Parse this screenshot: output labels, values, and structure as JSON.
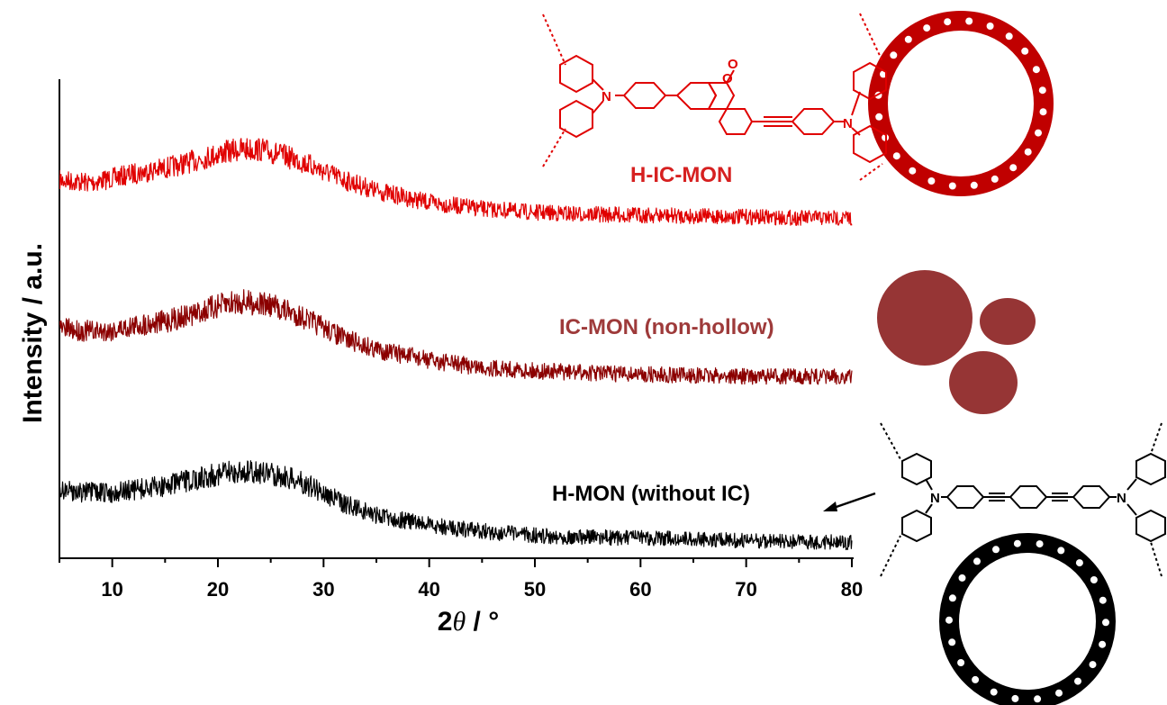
{
  "chart_data": {
    "type": "line",
    "xlabel": "2θ / °",
    "xlabel_parts": {
      "two": "2",
      "theta": "θ",
      "rest": " / °"
    },
    "ylabel": "Intensity / a.u.",
    "xlim": [
      5,
      80
    ],
    "xticks": [
      10,
      20,
      30,
      40,
      50,
      60,
      70,
      80
    ],
    "grid": false,
    "legend": "none",
    "series": [
      {
        "name": "H-IC-MON",
        "color": "#e00000",
        "x": [
          5,
          8,
          10,
          12,
          15,
          18,
          20,
          22,
          24,
          26,
          28,
          30,
          32,
          35,
          40,
          45,
          50,
          55,
          60,
          65,
          70,
          75,
          80
        ],
        "values": [
          0.5,
          0.47,
          0.52,
          0.57,
          0.63,
          0.72,
          0.79,
          0.84,
          0.84,
          0.78,
          0.7,
          0.6,
          0.5,
          0.38,
          0.25,
          0.18,
          0.14,
          0.12,
          0.11,
          0.1,
          0.09,
          0.08,
          0.08
        ]
      },
      {
        "name": "IC-MON (non-hollow)",
        "color": "#8b0000",
        "x": [
          5,
          8,
          10,
          12,
          15,
          18,
          20,
          22,
          24,
          26,
          28,
          30,
          32,
          35,
          40,
          45,
          50,
          55,
          60,
          65,
          70,
          75,
          80
        ],
        "values": [
          0.65,
          0.62,
          0.63,
          0.68,
          0.73,
          0.82,
          0.9,
          0.95,
          0.93,
          0.87,
          0.78,
          0.66,
          0.54,
          0.42,
          0.3,
          0.22,
          0.18,
          0.16,
          0.14,
          0.13,
          0.12,
          0.12,
          0.11
        ]
      },
      {
        "name": "H-MON (without IC)",
        "color": "#000000",
        "x": [
          5,
          8,
          10,
          12,
          15,
          18,
          20,
          22,
          24,
          26,
          28,
          30,
          32,
          35,
          40,
          45,
          50,
          55,
          60,
          65,
          70,
          75,
          80
        ],
        "values": [
          0.7,
          0.66,
          0.66,
          0.69,
          0.74,
          0.82,
          0.88,
          0.9,
          0.9,
          0.86,
          0.78,
          0.66,
          0.53,
          0.4,
          0.28,
          0.21,
          0.16,
          0.14,
          0.13,
          0.12,
          0.1,
          0.09,
          0.08
        ]
      }
    ]
  },
  "labels": {
    "h_ic_mon": "H-IC-MON",
    "ic_mon": "IC-MON (non-hollow)",
    "h_mon": "H-MON (without IC)"
  },
  "molecule_atoms": {
    "nitrogen": "N",
    "oxygen": "O"
  },
  "colors": {
    "red": "#e00000",
    "dark_red": "#8b0000",
    "particle": "#963535",
    "black": "#000000"
  }
}
